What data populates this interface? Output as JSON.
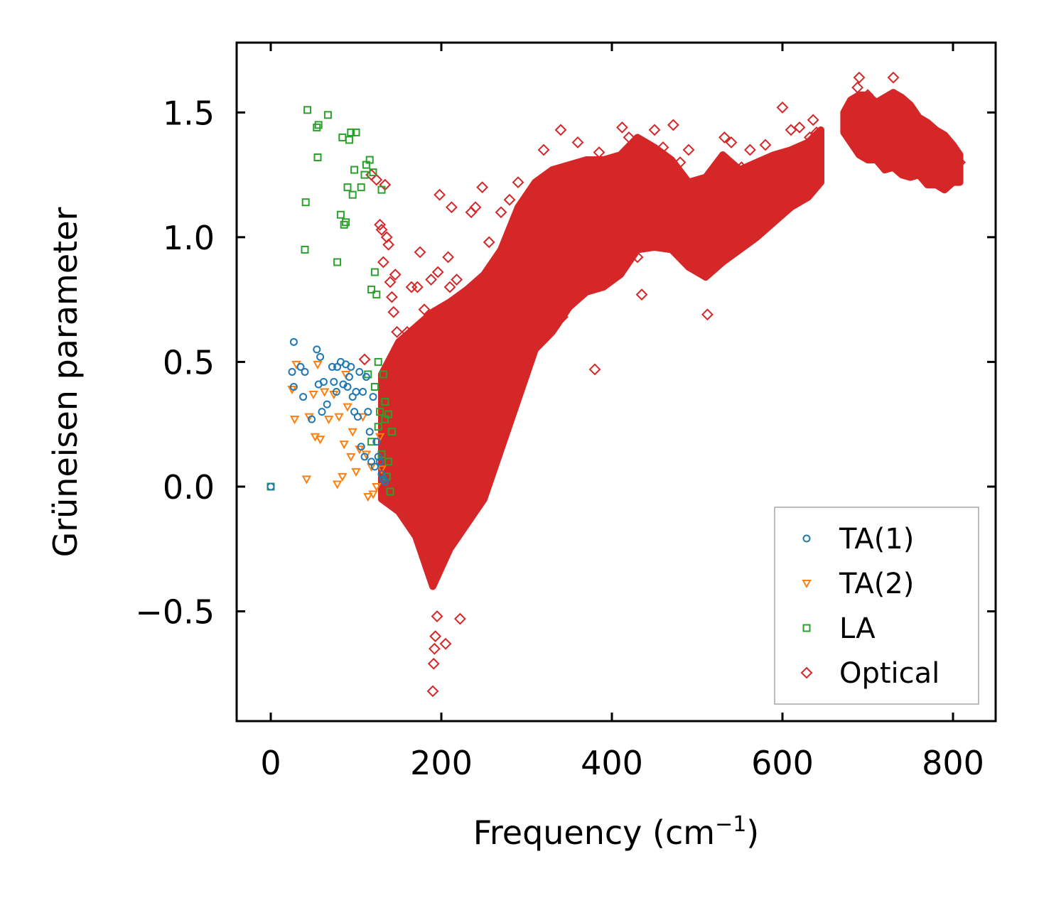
{
  "chart_data": {
    "type": "scatter",
    "title": "",
    "xlabel": "Frequency (cm",
    "xlabel_sup": "−1",
    "xlabel_close": ")",
    "ylabel": "Grüneisen parameter",
    "xlim": [
      -40,
      850
    ],
    "ylim": [
      -0.94,
      1.78
    ],
    "xticks": [
      0,
      200,
      400,
      600,
      800
    ],
    "xtick_labels": [
      "0",
      "200",
      "400",
      "600",
      "800"
    ],
    "yticks": [
      -0.5,
      0.0,
      0.5,
      1.0,
      1.5
    ],
    "ytick_labels": [
      "−0.5",
      "0.0",
      "0.5",
      "1.0",
      "1.5"
    ],
    "grid": false,
    "legend_position": "lower-right",
    "series": [
      {
        "name": "TA(1)",
        "marker": "circle",
        "color": "#1f77b4",
        "points": [
          [
            0,
            0
          ],
          [
            25,
            0.46
          ],
          [
            27,
            0.58
          ],
          [
            27,
            0.4
          ],
          [
            35,
            0.48
          ],
          [
            38,
            0.36
          ],
          [
            40,
            0.46
          ],
          [
            48,
            0.27
          ],
          [
            54,
            0.55
          ],
          [
            56,
            0.41
          ],
          [
            58,
            0.52
          ],
          [
            60,
            0.3
          ],
          [
            62,
            0.42
          ],
          [
            66,
            0.33
          ],
          [
            72,
            0.48
          ],
          [
            74,
            0.42
          ],
          [
            77,
            0.38
          ],
          [
            78,
            0.48
          ],
          [
            82,
            0.5
          ],
          [
            85,
            0.41
          ],
          [
            88,
            0.49
          ],
          [
            90,
            0.4
          ],
          [
            92,
            0.44
          ],
          [
            94,
            0.48
          ],
          [
            96,
            0.36
          ],
          [
            98,
            0.3
          ],
          [
            100,
            0.38
          ],
          [
            102,
            0.28
          ],
          [
            104,
            0.46
          ],
          [
            106,
            0.16
          ],
          [
            108,
            0.38
          ],
          [
            110,
            0.12
          ],
          [
            112,
            0.44
          ],
          [
            114,
            0.3
          ],
          [
            116,
            0.22
          ],
          [
            118,
            0.1
          ],
          [
            120,
            0.36
          ],
          [
            122,
            0.08
          ],
          [
            124,
            0.18
          ],
          [
            126,
            0.12
          ],
          [
            128,
            0.1
          ],
          [
            130,
            0.05
          ],
          [
            132,
            0.03
          ],
          [
            134,
            0.02
          ]
        ]
      },
      {
        "name": "TA(2)",
        "marker": "triangle-down",
        "color": "#ff7f0e",
        "points": [
          [
            25,
            0.39
          ],
          [
            28,
            0.27
          ],
          [
            30,
            0.49
          ],
          [
            42,
            0.03
          ],
          [
            45,
            0.28
          ],
          [
            50,
            0.37
          ],
          [
            52,
            0.2
          ],
          [
            55,
            0.49
          ],
          [
            58,
            0.19
          ],
          [
            63,
            0.38
          ],
          [
            68,
            0.27
          ],
          [
            74,
            0.37
          ],
          [
            78,
            0.01
          ],
          [
            80,
            0.28
          ],
          [
            84,
            0.04
          ],
          [
            86,
            0.17
          ],
          [
            88,
            0.45
          ],
          [
            90,
            0.32
          ],
          [
            94,
            0.12
          ],
          [
            96,
            0.22
          ],
          [
            100,
            0.06
          ],
          [
            104,
            0.15
          ],
          [
            108,
            0.28
          ],
          [
            112,
            0.13
          ],
          [
            114,
            -0.04
          ],
          [
            118,
            0.08
          ],
          [
            120,
            -0.03
          ],
          [
            124,
            0.0
          ],
          [
            128,
            0.2
          ],
          [
            130,
            0.07
          ]
        ]
      },
      {
        "name": "LA",
        "marker": "square",
        "color": "#2ca02c",
        "points": [
          [
            0,
            0
          ],
          [
            40,
            0.95
          ],
          [
            41,
            1.14
          ],
          [
            43,
            1.51
          ],
          [
            54,
            1.44
          ],
          [
            55,
            1.32
          ],
          [
            56,
            1.45
          ],
          [
            67,
            1.49
          ],
          [
            78,
            0.9
          ],
          [
            82,
            1.09
          ],
          [
            84,
            1.4
          ],
          [
            86,
            1.05
          ],
          [
            88,
            1.06
          ],
          [
            90,
            1.2
          ],
          [
            92,
            1.39
          ],
          [
            94,
            1.42
          ],
          [
            96,
            1.17
          ],
          [
            98,
            1.27
          ],
          [
            100,
            1.42
          ],
          [
            106,
            1.2
          ],
          [
            110,
            1.25
          ],
          [
            112,
            1.29
          ],
          [
            116,
            1.31
          ],
          [
            118,
            0.79
          ],
          [
            120,
            1.26
          ],
          [
            122,
            0.86
          ],
          [
            124,
            0.77
          ],
          [
            126,
            0.5
          ],
          [
            128,
            0.3
          ],
          [
            130,
            1.19
          ],
          [
            132,
            0.45
          ],
          [
            134,
            0.27
          ],
          [
            136,
            0.04
          ],
          [
            138,
            0.1
          ],
          [
            140,
            -0.02
          ],
          [
            142,
            0.22
          ],
          [
            114,
            0.45
          ],
          [
            118,
            0.18
          ],
          [
            122,
            0.4
          ],
          [
            126,
            0.24
          ],
          [
            130,
            0.13
          ],
          [
            134,
            0.34
          ],
          [
            138,
            0.29
          ]
        ]
      },
      {
        "name": "Optical",
        "marker": "diamond",
        "color": "#d62728",
        "points": [
          [
            110,
            0.51
          ],
          [
            118,
            1.25
          ],
          [
            124,
            1.23
          ],
          [
            128,
            1.05
          ],
          [
            130,
            1.03
          ],
          [
            132,
            0.9
          ],
          [
            134,
            1.21
          ],
          [
            136,
            1.0
          ],
          [
            138,
            0.97
          ],
          [
            140,
            0.82
          ],
          [
            142,
            0.76
          ],
          [
            144,
            0.7
          ],
          [
            146,
            0.85
          ],
          [
            148,
            0.62
          ],
          [
            150,
            0.55
          ],
          [
            155,
            0.59
          ],
          [
            160,
            0.62
          ],
          [
            165,
            0.8
          ],
          [
            168,
            0.52
          ],
          [
            172,
            0.8
          ],
          [
            175,
            0.94
          ],
          [
            176,
            0.55
          ],
          [
            180,
            0.71
          ],
          [
            184,
            0.62
          ],
          [
            188,
            0.83
          ],
          [
            190,
            -0.82
          ],
          [
            191,
            -0.71
          ],
          [
            192,
            -0.65
          ],
          [
            193,
            -0.6
          ],
          [
            195,
            -0.52
          ],
          [
            196,
            0.86
          ],
          [
            198,
            1.17
          ],
          [
            205,
            -0.63
          ],
          [
            208,
            0.92
          ],
          [
            210,
            0.8
          ],
          [
            212,
            1.12
          ],
          [
            218,
            0.83
          ],
          [
            222,
            -0.53
          ],
          [
            226,
            0.55
          ],
          [
            230,
            0.5
          ],
          [
            235,
            1.1
          ],
          [
            240,
            1.12
          ],
          [
            248,
            1.2
          ],
          [
            256,
            0.98
          ],
          [
            264,
            0.85
          ],
          [
            270,
            1.1
          ],
          [
            280,
            1.15
          ],
          [
            290,
            1.22
          ],
          [
            302,
            1.05
          ],
          [
            315,
            0.61
          ],
          [
            320,
            1.35
          ],
          [
            324,
            0.95
          ],
          [
            340,
            1.43
          ],
          [
            342,
            0.68
          ],
          [
            360,
            1.38
          ],
          [
            380,
            0.47
          ],
          [
            385,
            1.34
          ],
          [
            395,
            1.3
          ],
          [
            405,
            1.26
          ],
          [
            412,
            1.44
          ],
          [
            420,
            1.4
          ],
          [
            430,
            0.92
          ],
          [
            435,
            0.77
          ],
          [
            450,
            1.43
          ],
          [
            460,
            1.36
          ],
          [
            472,
            1.45
          ],
          [
            480,
            1.3
          ],
          [
            490,
            1.35
          ],
          [
            500,
            1.05
          ],
          [
            508,
            0.95
          ],
          [
            512,
            0.69
          ],
          [
            520,
            0.9
          ],
          [
            532,
            1.4
          ],
          [
            540,
            1.38
          ],
          [
            552,
            1.28
          ],
          [
            562,
            1.35
          ],
          [
            580,
            1.37
          ],
          [
            600,
            1.52
          ],
          [
            610,
            1.43
          ],
          [
            620,
            1.44
          ],
          [
            632,
            1.4
          ],
          [
            636,
            1.47
          ],
          [
            640,
            1.42
          ],
          [
            676,
            1.47
          ],
          [
            688,
            1.6
          ],
          [
            690,
            1.64
          ],
          [
            700,
            1.57
          ],
          [
            710,
            1.5
          ],
          [
            720,
            1.55
          ],
          [
            730,
            1.64
          ],
          [
            740,
            1.48
          ],
          [
            750,
            1.52
          ],
          [
            760,
            1.46
          ],
          [
            770,
            1.4
          ],
          [
            780,
            1.35
          ],
          [
            790,
            1.38
          ],
          [
            800,
            1.33
          ],
          [
            808,
            1.3
          ]
        ]
      }
    ],
    "dense_bands": [
      {
        "series": "Optical",
        "x": [
          130,
          150,
          170,
          190,
          210,
          230,
          250,
          270,
          290,
          310,
          330,
          350,
          370,
          390,
          410,
          430,
          450,
          470,
          490,
          510,
          530,
          550,
          570,
          590,
          610,
          630,
          645
        ],
        "upper": [
          0.45,
          0.58,
          0.64,
          0.7,
          0.74,
          0.79,
          0.85,
          0.95,
          1.12,
          1.22,
          1.27,
          1.29,
          1.31,
          1.31,
          1.33,
          1.4,
          1.36,
          1.31,
          1.22,
          1.24,
          1.33,
          1.27,
          1.3,
          1.33,
          1.35,
          1.38,
          1.43
        ],
        "lower": [
          -0.05,
          -0.1,
          -0.2,
          -0.4,
          -0.25,
          -0.15,
          -0.05,
          0.15,
          0.35,
          0.55,
          0.62,
          0.72,
          0.78,
          0.8,
          0.85,
          0.95,
          0.96,
          0.95,
          0.88,
          0.84,
          0.9,
          0.95,
          1.0,
          1.06,
          1.12,
          1.16,
          1.22
        ]
      },
      {
        "series": "Optical",
        "x": [
          672,
          680,
          690,
          700,
          710,
          720,
          730,
          740,
          750,
          760,
          770,
          780,
          790,
          800,
          808
        ],
        "upper": [
          1.5,
          1.55,
          1.57,
          1.57,
          1.54,
          1.56,
          1.58,
          1.56,
          1.53,
          1.48,
          1.46,
          1.43,
          1.41,
          1.37,
          1.33
        ],
        "lower": [
          1.42,
          1.38,
          1.33,
          1.31,
          1.31,
          1.27,
          1.28,
          1.25,
          1.24,
          1.25,
          1.21,
          1.21,
          1.19,
          1.22,
          1.22
        ]
      }
    ]
  }
}
